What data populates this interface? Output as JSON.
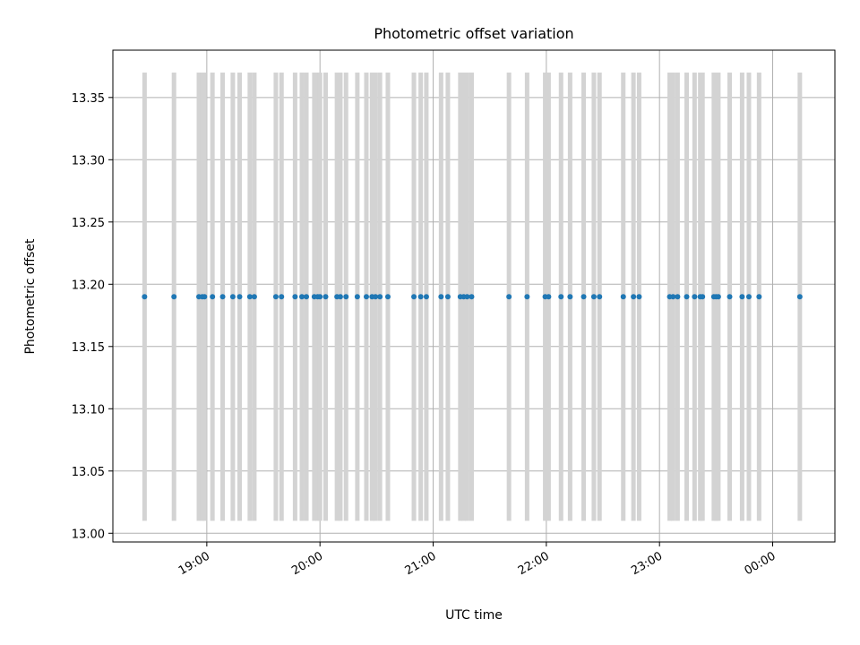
{
  "chart_data": {
    "type": "scatter",
    "title": "Photometric offset variation",
    "xlabel": "UTC time",
    "ylabel": "Photometric offset",
    "x_tick_labels": [
      "19:00",
      "20:00",
      "21:00",
      "22:00",
      "23:00",
      "00:00"
    ],
    "x_tick_hours": [
      19,
      20,
      21,
      22,
      23,
      24
    ],
    "xlim_hours": [
      18.17,
      24.55
    ],
    "y_tick_labels": [
      "13.00",
      "13.05",
      "13.10",
      "13.15",
      "13.20",
      "13.25",
      "13.30",
      "13.35"
    ],
    "y_tick_values": [
      13.0,
      13.05,
      13.1,
      13.15,
      13.2,
      13.25,
      13.3,
      13.35
    ],
    "ylim": [
      12.993,
      13.388
    ],
    "grid": true,
    "series": [
      {
        "marker_color": "#1f77b4",
        "errorbar_color": "#d3d3d3",
        "y_value": 13.19,
        "yerr_low": 0.18,
        "yerr_high": 0.18,
        "x_hours": [
          18.45,
          18.71,
          18.93,
          18.96,
          18.98,
          19.05,
          19.14,
          19.23,
          19.29,
          19.38,
          19.42,
          19.61,
          19.66,
          19.78,
          19.84,
          19.88,
          19.95,
          19.98,
          20.0,
          20.05,
          20.15,
          20.18,
          20.23,
          20.33,
          20.41,
          20.46,
          20.49,
          20.53,
          20.6,
          20.83,
          20.89,
          20.94,
          21.07,
          21.13,
          21.24,
          21.27,
          21.3,
          21.34,
          21.67,
          21.83,
          21.99,
          22.02,
          22.13,
          22.21,
          22.33,
          22.42,
          22.47,
          22.68,
          22.77,
          22.82,
          23.09,
          23.12,
          23.16,
          23.24,
          23.31,
          23.36,
          23.38,
          23.48,
          23.5,
          23.52,
          23.62,
          23.73,
          23.79,
          23.88,
          24.24
        ]
      }
    ]
  }
}
